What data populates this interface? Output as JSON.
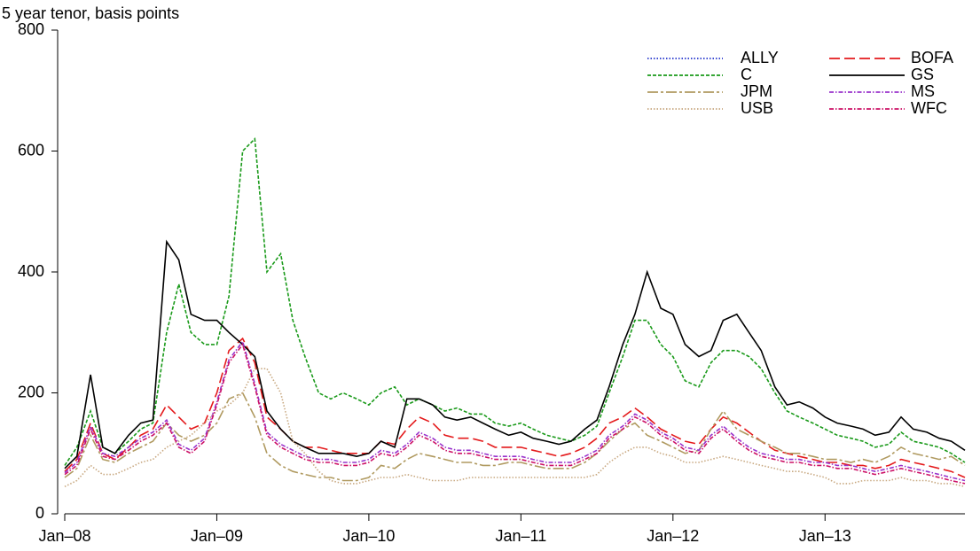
{
  "chart_data": {
    "type": "line",
    "y_label": "5 year tenor, basis points",
    "xlim": [
      2008,
      2013.92
    ],
    "ylim": [
      0,
      800
    ],
    "xticks": [
      {
        "value": 2008,
        "label": "Jan–08"
      },
      {
        "value": 2009,
        "label": "Jan–09"
      },
      {
        "value": 2010,
        "label": "Jan–10"
      },
      {
        "value": 2011,
        "label": "Jan–11"
      },
      {
        "value": 2012,
        "label": "Jan–12"
      },
      {
        "value": 2013,
        "label": "Jan–13"
      }
    ],
    "yticks": [
      0,
      200,
      400,
      600,
      800
    ],
    "legend": "top-right",
    "x": [
      2008,
      2008.08,
      2008.17,
      2008.25,
      2008.33,
      2008.42,
      2008.5,
      2008.58,
      2008.67,
      2008.75,
      2008.83,
      2008.92,
      2009,
      2009.08,
      2009.17,
      2009.25,
      2009.33,
      2009.42,
      2009.5,
      2009.58,
      2009.67,
      2009.75,
      2009.83,
      2009.92,
      2010,
      2010.08,
      2010.17,
      2010.25,
      2010.33,
      2010.42,
      2010.5,
      2010.58,
      2010.67,
      2010.75,
      2010.83,
      2010.92,
      2011,
      2011.08,
      2011.17,
      2011.25,
      2011.33,
      2011.42,
      2011.5,
      2011.58,
      2011.67,
      2011.75,
      2011.83,
      2011.92,
      2012,
      2012.08,
      2012.17,
      2012.25,
      2012.33,
      2012.42,
      2012.5,
      2012.58,
      2012.67,
      2012.75,
      2012.83,
      2012.92,
      2013,
      2013.08,
      2013.17,
      2013.25,
      2013.33,
      2013.42,
      2013.5,
      2013.58,
      2013.67,
      2013.75,
      2013.83,
      2013.92
    ],
    "series": [
      {
        "name": "ALLY",
        "color": "#2233cc",
        "dash": "dotted",
        "values": [
          null,
          null,
          null,
          null,
          null,
          null,
          null,
          null,
          null,
          null,
          null,
          null,
          null,
          null,
          null,
          null,
          null,
          null,
          null,
          null,
          null,
          null,
          null,
          null,
          null,
          null,
          null,
          null,
          null,
          null,
          null,
          null,
          null,
          null,
          null,
          null,
          null,
          null,
          null,
          null,
          null,
          null,
          null,
          null,
          null,
          null,
          null,
          null,
          null,
          null,
          null,
          null,
          null,
          null,
          null,
          null,
          null,
          null,
          null,
          null,
          null,
          null,
          null,
          null,
          null,
          null,
          null,
          null,
          null,
          null,
          null,
          null
        ]
      },
      {
        "name": "BOFA",
        "color": "#e41a1c",
        "dash": "longdash",
        "values": [
          70,
          90,
          150,
          100,
          90,
          110,
          130,
          140,
          180,
          160,
          140,
          150,
          200,
          270,
          290,
          250,
          160,
          140,
          120,
          110,
          110,
          105,
          100,
          100,
          100,
          120,
          115,
          140,
          160,
          150,
          130,
          125,
          125,
          120,
          110,
          110,
          110,
          105,
          100,
          95,
          100,
          110,
          125,
          150,
          160,
          175,
          160,
          140,
          130,
          120,
          115,
          140,
          160,
          150,
          135,
          120,
          105,
          100,
          95,
          90,
          85,
          85,
          80,
          80,
          75,
          80,
          90,
          85,
          80,
          75,
          70,
          60
        ]
      },
      {
        "name": "C",
        "color": "#1a9a1a",
        "dash": "dashed",
        "values": [
          80,
          110,
          170,
          110,
          100,
          120,
          140,
          150,
          300,
          380,
          300,
          280,
          280,
          360,
          600,
          620,
          400,
          430,
          320,
          260,
          200,
          190,
          200,
          190,
          180,
          200,
          210,
          180,
          190,
          180,
          170,
          175,
          165,
          165,
          150,
          145,
          150,
          140,
          130,
          125,
          120,
          130,
          145,
          200,
          260,
          320,
          320,
          280,
          260,
          220,
          210,
          250,
          270,
          270,
          260,
          240,
          200,
          170,
          160,
          150,
          140,
          130,
          125,
          120,
          110,
          115,
          135,
          120,
          115,
          110,
          100,
          85
        ]
      },
      {
        "name": "GS",
        "color": "#000000",
        "dash": "solid",
        "values": [
          75,
          95,
          230,
          110,
          100,
          130,
          150,
          155,
          450,
          420,
          330,
          320,
          320,
          300,
          280,
          260,
          170,
          140,
          120,
          110,
          100,
          100,
          100,
          95,
          100,
          120,
          110,
          190,
          190,
          180,
          160,
          155,
          160,
          150,
          140,
          130,
          135,
          125,
          120,
          115,
          120,
          140,
          155,
          210,
          280,
          330,
          400,
          340,
          330,
          280,
          260,
          270,
          320,
          330,
          300,
          270,
          210,
          180,
          185,
          175,
          160,
          150,
          145,
          140,
          130,
          135,
          160,
          140,
          135,
          125,
          120,
          105
        ]
      },
      {
        "name": "JPM",
        "color": "#b09a60",
        "dash": "dashdot",
        "values": [
          60,
          75,
          130,
          90,
          85,
          100,
          110,
          120,
          150,
          130,
          120,
          130,
          150,
          190,
          200,
          160,
          100,
          80,
          70,
          65,
          60,
          60,
          55,
          55,
          60,
          80,
          75,
          90,
          100,
          95,
          90,
          85,
          85,
          80,
          80,
          85,
          85,
          80,
          75,
          75,
          75,
          85,
          100,
          120,
          140,
          150,
          130,
          120,
          110,
          100,
          105,
          140,
          170,
          140,
          130,
          120,
          110,
          100,
          100,
          95,
          90,
          90,
          85,
          90,
          85,
          95,
          110,
          100,
          95,
          90,
          95,
          80
        ]
      },
      {
        "name": "MS",
        "color": "#9933cc",
        "dash": "dashdot2",
        "values": [
          68,
          85,
          145,
          100,
          95,
          110,
          125,
          135,
          155,
          115,
          105,
          125,
          185,
          255,
          285,
          215,
          135,
          115,
          105,
          95,
          90,
          90,
          85,
          85,
          90,
          105,
          100,
          115,
          135,
          125,
          110,
          105,
          105,
          100,
          95,
          95,
          95,
          90,
          85,
          85,
          85,
          95,
          105,
          130,
          145,
          165,
          155,
          135,
          125,
          110,
          105,
          130,
          145,
          125,
          110,
          100,
          95,
          90,
          90,
          85,
          85,
          80,
          80,
          75,
          70,
          75,
          80,
          75,
          70,
          65,
          60,
          55
        ]
      },
      {
        "name": "USB",
        "color": "#c8a880",
        "dash": "dotted",
        "values": [
          45,
          55,
          80,
          65,
          65,
          75,
          85,
          90,
          110,
          120,
          130,
          150,
          170,
          180,
          200,
          240,
          240,
          200,
          120,
          100,
          70,
          55,
          50,
          50,
          55,
          60,
          60,
          65,
          60,
          55,
          55,
          55,
          60,
          60,
          60,
          60,
          60,
          60,
          60,
          60,
          60,
          60,
          65,
          85,
          100,
          110,
          110,
          100,
          95,
          85,
          85,
          90,
          95,
          90,
          85,
          80,
          75,
          70,
          70,
          65,
          60,
          50,
          50,
          55,
          55,
          55,
          60,
          55,
          55,
          50,
          50,
          45
        ]
      },
      {
        "name": "WFC",
        "color": "#cc1166",
        "dash": "dashdot2",
        "values": [
          65,
          80,
          140,
          95,
          90,
          105,
          120,
          130,
          150,
          110,
          100,
          120,
          180,
          250,
          280,
          210,
          130,
          110,
          100,
          90,
          85,
          85,
          80,
          80,
          85,
          100,
          95,
          110,
          130,
          120,
          105,
          100,
          100,
          95,
          90,
          90,
          90,
          85,
          80,
          80,
          80,
          90,
          100,
          125,
          140,
          160,
          150,
          130,
          120,
          105,
          100,
          125,
          140,
          120,
          105,
          95,
          90,
          85,
          85,
          80,
          80,
          75,
          75,
          70,
          65,
          70,
          75,
          70,
          65,
          60,
          55,
          50
        ]
      }
    ]
  }
}
